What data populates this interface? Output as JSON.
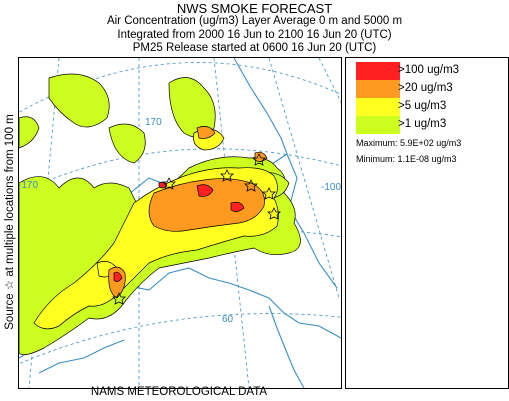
{
  "header": {
    "title": "NWS SMOKE FORECAST",
    "line2": "Air Concentration (ug/m3) Layer Average     0 m and  5000 m",
    "line3": "Integrated from 2000 16 Jun to 2100 16 Jun 20 (UTC)",
    "line4": "PM25 Release started at 0600 16 Jun 20 (UTC)"
  },
  "y_axis_label": "Source ☆  at multiple locations   from   100 m",
  "x_axis_label": "NAMS METEOROLOGICAL DATA",
  "map": {
    "grid_labels": [
      "170",
      "-170",
      "-100",
      "60"
    ],
    "colors": {
      "coastline": "#3a8fc4",
      "grid": "#3a8fc4",
      "contour_line": "#000000"
    }
  },
  "legend": {
    "items": [
      {
        "label": ">100 ug/m3",
        "color": "#ff2020"
      },
      {
        "label": ">20 ug/m3",
        "color": "#ff9a20"
      },
      {
        "label": ">5 ug/m3",
        "color": "#ffff20"
      },
      {
        "label": ">1 ug/m3",
        "color": "#ccff20"
      }
    ],
    "maximum": "Maximum: 5.9E+02 ug/m3",
    "minimum": "Minimum: 1.1E-08 ug/m3"
  }
}
